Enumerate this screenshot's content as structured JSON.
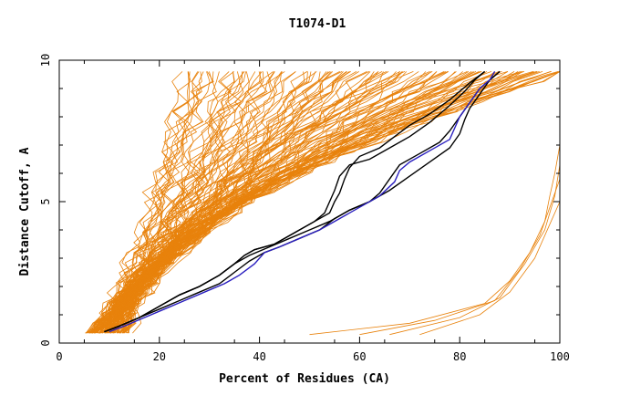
{
  "chart_data": {
    "type": "line",
    "title": "T1074-D1",
    "xlabel": "Percent of Residues (CA)",
    "ylabel": "Distance Cutoff, A",
    "xlim": [
      0,
      100
    ],
    "ylim": [
      0,
      10
    ],
    "x_ticks": [
      "0",
      "20",
      "40",
      "60",
      "80",
      "100"
    ],
    "y_ticks": [
      "0",
      "5",
      "10"
    ],
    "grid": false,
    "legend": "none",
    "colors": {
      "background_models": "#e8820c",
      "highlight_black": "#000000",
      "highlight_blue": "#2a1fbf",
      "axes": "#000000"
    },
    "series": [
      {
        "color": "#000000",
        "points": [
          [
            9,
            0.4
          ],
          [
            12,
            0.6
          ],
          [
            16,
            0.9
          ],
          [
            20,
            1.3
          ],
          [
            24,
            1.7
          ],
          [
            28,
            2.0
          ],
          [
            32,
            2.4
          ],
          [
            35,
            2.8
          ],
          [
            37,
            3.1
          ],
          [
            39,
            3.3
          ],
          [
            43,
            3.5
          ],
          [
            47,
            3.9
          ],
          [
            51,
            4.3
          ],
          [
            54,
            4.6
          ],
          [
            55,
            5.0
          ],
          [
            56,
            5.3
          ],
          [
            57,
            5.8
          ],
          [
            58,
            6.2
          ],
          [
            60,
            6.6
          ],
          [
            64,
            6.9
          ],
          [
            67,
            7.3
          ],
          [
            70,
            7.7
          ],
          [
            74,
            8.1
          ],
          [
            78,
            8.6
          ],
          [
            82,
            9.2
          ],
          [
            85,
            9.6
          ]
        ]
      },
      {
        "color": "#000000",
        "points": [
          [
            9,
            0.4
          ],
          [
            12,
            0.6
          ],
          [
            16,
            0.9
          ],
          [
            20,
            1.3
          ],
          [
            24,
            1.7
          ],
          [
            28,
            2.0
          ],
          [
            32,
            2.4
          ],
          [
            35,
            2.8
          ],
          [
            37,
            3.1
          ],
          [
            39,
            3.3
          ],
          [
            43,
            3.5
          ],
          [
            47,
            3.9
          ],
          [
            51,
            4.3
          ],
          [
            53,
            4.6
          ],
          [
            54,
            5.0
          ],
          [
            55,
            5.4
          ],
          [
            56,
            5.9
          ],
          [
            58,
            6.3
          ],
          [
            62,
            6.5
          ],
          [
            66,
            6.9
          ],
          [
            70,
            7.3
          ],
          [
            74,
            7.8
          ],
          [
            78,
            8.4
          ],
          [
            81,
            8.9
          ],
          [
            83,
            9.3
          ],
          [
            85,
            9.6
          ]
        ]
      },
      {
        "color": "#000000",
        "points": [
          [
            9,
            0.4
          ],
          [
            12,
            0.6
          ],
          [
            16,
            0.9
          ],
          [
            20,
            1.3
          ],
          [
            24,
            1.7
          ],
          [
            28,
            2.0
          ],
          [
            32,
            2.4
          ],
          [
            35,
            2.8
          ],
          [
            38,
            3.1
          ],
          [
            42,
            3.4
          ],
          [
            46,
            3.7
          ],
          [
            50,
            4.0
          ],
          [
            54,
            4.3
          ],
          [
            58,
            4.7
          ],
          [
            62,
            5.0
          ],
          [
            66,
            5.4
          ],
          [
            70,
            5.9
          ],
          [
            74,
            6.4
          ],
          [
            78,
            6.9
          ],
          [
            80,
            7.4
          ],
          [
            81,
            7.9
          ],
          [
            82,
            8.3
          ],
          [
            84,
            8.8
          ],
          [
            86,
            9.3
          ],
          [
            88,
            9.6
          ]
        ]
      },
      {
        "color": "#000000",
        "points": [
          [
            9,
            0.4
          ],
          [
            12,
            0.6
          ],
          [
            16,
            0.9
          ],
          [
            20,
            1.2
          ],
          [
            24,
            1.5
          ],
          [
            28,
            1.8
          ],
          [
            32,
            2.1
          ],
          [
            35,
            2.5
          ],
          [
            38,
            2.9
          ],
          [
            41,
            3.2
          ],
          [
            44,
            3.4
          ],
          [
            48,
            3.7
          ],
          [
            52,
            4.0
          ],
          [
            55,
            4.4
          ],
          [
            58,
            4.7
          ],
          [
            62,
            5.0
          ],
          [
            64,
            5.3
          ],
          [
            66,
            5.8
          ],
          [
            68,
            6.3
          ],
          [
            72,
            6.7
          ],
          [
            76,
            7.1
          ],
          [
            78,
            7.5
          ],
          [
            80,
            8.0
          ],
          [
            82,
            8.5
          ],
          [
            84,
            9.0
          ],
          [
            86,
            9.3
          ],
          [
            88,
            9.6
          ]
        ]
      },
      {
        "color": "#2a1fbf",
        "points": [
          [
            10,
            0.4
          ],
          [
            13,
            0.6
          ],
          [
            17,
            0.9
          ],
          [
            21,
            1.2
          ],
          [
            25,
            1.5
          ],
          [
            29,
            1.8
          ],
          [
            33,
            2.1
          ],
          [
            36,
            2.4
          ],
          [
            39,
            2.8
          ],
          [
            41,
            3.2
          ],
          [
            44,
            3.4
          ],
          [
            48,
            3.7
          ],
          [
            52,
            4.0
          ],
          [
            56,
            4.4
          ],
          [
            60,
            4.8
          ],
          [
            64,
            5.2
          ],
          [
            67,
            5.7
          ],
          [
            68,
            6.1
          ],
          [
            70,
            6.4
          ],
          [
            74,
            6.8
          ],
          [
            78,
            7.2
          ],
          [
            79,
            7.6
          ],
          [
            80,
            8.0
          ],
          [
            82,
            8.5
          ],
          [
            84,
            9.0
          ],
          [
            86,
            9.3
          ],
          [
            87,
            9.6
          ]
        ]
      }
    ]
  }
}
